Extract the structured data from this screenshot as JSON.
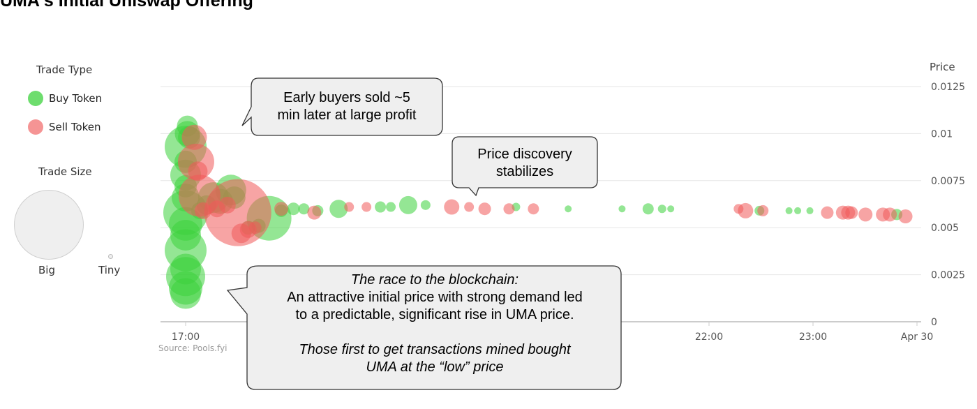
{
  "title": "UMA's Initial Uniswap Offering",
  "source": "Source: Pools.fyi",
  "colors": {
    "buy": "#3cd23c",
    "sell": "#f05a5a"
  },
  "legend": {
    "trade_type_title": "Trade Type",
    "buy_label": "Buy Token",
    "sell_label": "Sell Token",
    "trade_size_title": "Trade Size",
    "big_label": "Big",
    "tiny_label": "Tiny"
  },
  "callouts": {
    "early": "Early buyers sold ~5\nmin later at large profit",
    "discovery": "Price discovery\nstabilizes",
    "race_line1": "The race to the blockchain:",
    "race_line2": "An attractive initial price with strong demand led\nto a predictable, significant rise in UMA price.",
    "race_line3": "Those first to get transactions mined bought\nUMA at the “low” price"
  },
  "chart_data": {
    "type": "scatter",
    "title": "UMA's Initial Uniswap Offering",
    "ylabel": "Price",
    "ylim": [
      0,
      0.0125
    ],
    "y_ticks": [
      "0",
      "0.0025",
      "0.005",
      "0.0075",
      "0.01",
      "0.0125"
    ],
    "x_ticks": [
      "17:00",
      "22:00",
      "23:00",
      "Apr 30"
    ],
    "legend": [
      "Buy Token",
      "Sell Token"
    ],
    "grid": true,
    "series": [
      {
        "name": "Buy Token",
        "points": [
          {
            "t": "17:00",
            "price": 0.0015,
            "size": 22
          },
          {
            "t": "17:00",
            "price": 0.0018,
            "size": 24
          },
          {
            "t": "17:00",
            "price": 0.0024,
            "size": 28
          },
          {
            "t": "17:00",
            "price": 0.0028,
            "size": 22
          },
          {
            "t": "17:00",
            "price": 0.0038,
            "size": 30
          },
          {
            "t": "17:00",
            "price": 0.0046,
            "size": 22
          },
          {
            "t": "17:00",
            "price": 0.0052,
            "size": 24
          },
          {
            "t": "17:00",
            "price": 0.0058,
            "size": 32
          },
          {
            "t": "17:00",
            "price": 0.0066,
            "size": 20
          },
          {
            "t": "17:00",
            "price": 0.0072,
            "size": 16
          },
          {
            "t": "17:00",
            "price": 0.0078,
            "size": 22
          },
          {
            "t": "17:00",
            "price": 0.0085,
            "size": 16
          },
          {
            "t": "17:00",
            "price": 0.0093,
            "size": 30
          },
          {
            "t": "17:01",
            "price": 0.01,
            "size": 18
          },
          {
            "t": "17:01",
            "price": 0.0104,
            "size": 15
          },
          {
            "t": "17:02",
            "price": 0.0098,
            "size": 16
          },
          {
            "t": "17:08",
            "price": 0.0059,
            "size": 12
          },
          {
            "t": "17:12",
            "price": 0.0062,
            "size": 14
          },
          {
            "t": "17:16",
            "price": 0.0066,
            "size": 22
          },
          {
            "t": "17:20",
            "price": 0.0064,
            "size": 18
          },
          {
            "t": "17:26",
            "price": 0.007,
            "size": 22
          },
          {
            "t": "17:28",
            "price": 0.0066,
            "size": 16
          },
          {
            "t": "17:36",
            "price": 0.005,
            "size": 10
          },
          {
            "t": "17:42",
            "price": 0.0051,
            "size": 10
          },
          {
            "t": "17:48",
            "price": 0.0055,
            "size": 32
          },
          {
            "t": "17:55",
            "price": 0.0059,
            "size": 9
          },
          {
            "t": "18:02",
            "price": 0.006,
            "size": 9
          },
          {
            "t": "18:08",
            "price": 0.006,
            "size": 8
          },
          {
            "t": "18:16",
            "price": 0.0059,
            "size": 8
          },
          {
            "t": "18:28",
            "price": 0.006,
            "size": 13
          },
          {
            "t": "18:52",
            "price": 0.0061,
            "size": 8
          },
          {
            "t": "18:58",
            "price": 0.0061,
            "size": 7
          },
          {
            "t": "19:08",
            "price": 0.0062,
            "size": 13
          },
          {
            "t": "19:18",
            "price": 0.0062,
            "size": 7
          },
          {
            "t": "20:10",
            "price": 0.0061,
            "size": 6
          },
          {
            "t": "20:40",
            "price": 0.006,
            "size": 5
          },
          {
            "t": "21:11",
            "price": 0.006,
            "size": 5
          },
          {
            "t": "21:26",
            "price": 0.006,
            "size": 8
          },
          {
            "t": "21:34",
            "price": 0.006,
            "size": 6
          },
          {
            "t": "21:39",
            "price": 0.006,
            "size": 5
          },
          {
            "t": "22:30",
            "price": 0.0059,
            "size": 7
          },
          {
            "t": "22:47",
            "price": 0.0059,
            "size": 5
          },
          {
            "t": "22:52",
            "price": 0.0059,
            "size": 5
          },
          {
            "t": "22:59",
            "price": 0.0059,
            "size": 5
          },
          {
            "t": "23:49",
            "price": 0.0057,
            "size": 8
          }
        ]
      },
      {
        "name": "Sell Token",
        "points": [
          {
            "t": "17:05",
            "price": 0.0098,
            "size": 18
          },
          {
            "t": "17:06",
            "price": 0.0085,
            "size": 26
          },
          {
            "t": "17:07",
            "price": 0.008,
            "size": 14
          },
          {
            "t": "17:08",
            "price": 0.0067,
            "size": 30
          },
          {
            "t": "17:10",
            "price": 0.0059,
            "size": 12
          },
          {
            "t": "17:18",
            "price": 0.006,
            "size": 12
          },
          {
            "t": "17:24",
            "price": 0.0062,
            "size": 12
          },
          {
            "t": "17:30",
            "price": 0.0058,
            "size": 48
          },
          {
            "t": "17:32",
            "price": 0.0047,
            "size": 14
          },
          {
            "t": "17:36",
            "price": 0.0049,
            "size": 12
          },
          {
            "t": "17:40",
            "price": 0.005,
            "size": 9
          },
          {
            "t": "17:55",
            "price": 0.006,
            "size": 10
          },
          {
            "t": "18:14",
            "price": 0.0058,
            "size": 10
          },
          {
            "t": "18:34",
            "price": 0.0061,
            "size": 7
          },
          {
            "t": "18:44",
            "price": 0.0061,
            "size": 7
          },
          {
            "t": "19:33",
            "price": 0.0061,
            "size": 11
          },
          {
            "t": "19:43",
            "price": 0.0061,
            "size": 7
          },
          {
            "t": "19:52",
            "price": 0.006,
            "size": 9
          },
          {
            "t": "20:06",
            "price": 0.006,
            "size": 8
          },
          {
            "t": "20:20",
            "price": 0.006,
            "size": 8
          },
          {
            "t": "22:18",
            "price": 0.006,
            "size": 7
          },
          {
            "t": "22:22",
            "price": 0.0059,
            "size": 11
          },
          {
            "t": "22:32",
            "price": 0.0059,
            "size": 8
          },
          {
            "t": "23:09",
            "price": 0.0058,
            "size": 9
          },
          {
            "t": "23:18",
            "price": 0.0058,
            "size": 10
          },
          {
            "t": "23:21",
            "price": 0.0058,
            "size": 10
          },
          {
            "t": "23:23",
            "price": 0.0058,
            "size": 9
          },
          {
            "t": "23:31",
            "price": 0.0057,
            "size": 10
          },
          {
            "t": "23:41",
            "price": 0.0057,
            "size": 10
          },
          {
            "t": "23:45",
            "price": 0.0057,
            "size": 10
          },
          {
            "t": "23:54",
            "price": 0.0056,
            "size": 10
          }
        ]
      }
    ]
  }
}
